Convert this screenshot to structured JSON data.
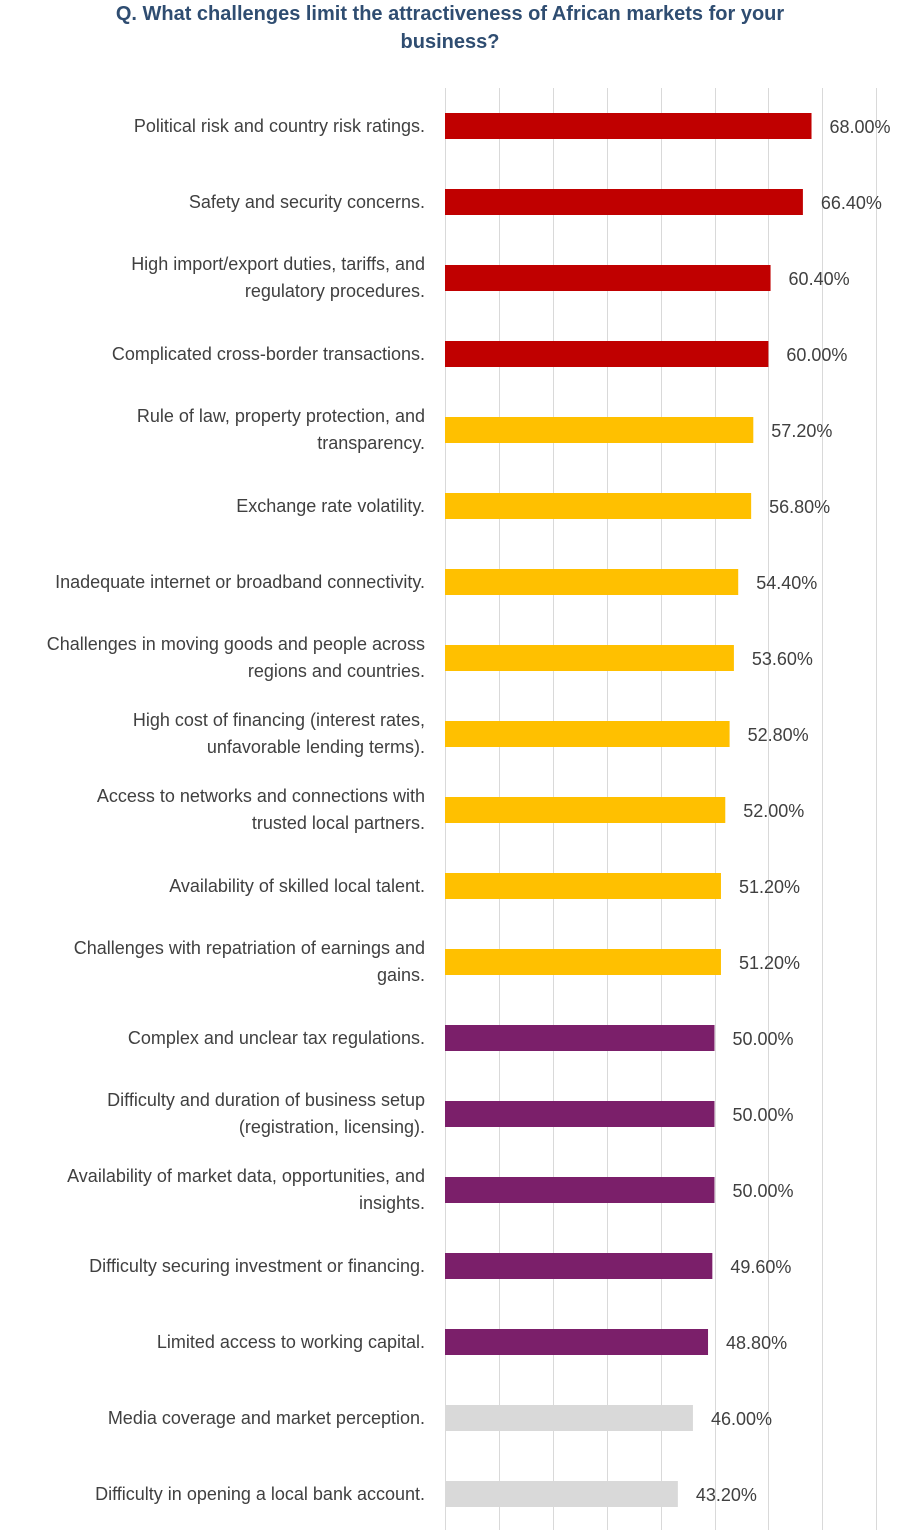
{
  "chart_data": {
    "type": "bar",
    "orientation": "horizontal",
    "title": "Q. What challenges limit the attractiveness of African markets for your business?",
    "title_lines": [
      "Q. What challenges limit the attractiveness of African markets for your",
      "business?"
    ],
    "xlim": [
      0,
      80
    ],
    "grid": true,
    "categories": [
      [
        "Political risk and country risk ratings."
      ],
      [
        "Safety and security concerns."
      ],
      [
        "High import/export duties, tariffs, and",
        "regulatory procedures."
      ],
      [
        "Complicated cross-border transactions."
      ],
      [
        "Rule of law, property protection, and",
        "transparency."
      ],
      [
        "Exchange rate volatility."
      ],
      [
        "Inadequate internet or broadband connectivity."
      ],
      [
        "Challenges in moving goods and people across",
        "regions and countries."
      ],
      [
        "High cost of financing (interest rates,",
        "unfavorable lending terms)."
      ],
      [
        "Access to networks and connections with",
        "trusted local partners."
      ],
      [
        "Availability of skilled local talent."
      ],
      [
        "Challenges with repatriation of earnings and",
        "gains."
      ],
      [
        "Complex and unclear tax regulations."
      ],
      [
        "Difficulty and duration of business setup",
        "(registration, licensing)."
      ],
      [
        "Availability of market data, opportunities, and",
        "insights."
      ],
      [
        "Difficulty securing investment or financing."
      ],
      [
        "Limited access to working capital."
      ],
      [
        "Media coverage and market perception."
      ],
      [
        "Difficulty in opening a local bank account."
      ]
    ],
    "values": [
      68.0,
      66.4,
      60.4,
      60.0,
      57.2,
      56.8,
      54.4,
      53.6,
      52.8,
      52.0,
      51.2,
      51.2,
      50.0,
      50.0,
      50.0,
      49.6,
      48.8,
      46.0,
      43.2
    ],
    "value_labels": [
      "68.00%",
      "66.40%",
      "60.40%",
      "60.00%",
      "57.20%",
      "56.80%",
      "54.40%",
      "53.60%",
      "52.80%",
      "52.00%",
      "51.20%",
      "51.20%",
      "50.00%",
      "50.00%",
      "50.00%",
      "49.60%",
      "48.80%",
      "46.00%",
      "43.20%"
    ],
    "bar_colors": [
      "#c00000",
      "#c00000",
      "#c00000",
      "#c00000",
      "#ffc000",
      "#ffc000",
      "#ffc000",
      "#ffc000",
      "#ffc000",
      "#ffc000",
      "#ffc000",
      "#ffc000",
      "#7b1f6a",
      "#7b1f6a",
      "#7b1f6a",
      "#7b1f6a",
      "#7b1f6a",
      "#d9d9d9",
      "#d9d9d9"
    ]
  }
}
